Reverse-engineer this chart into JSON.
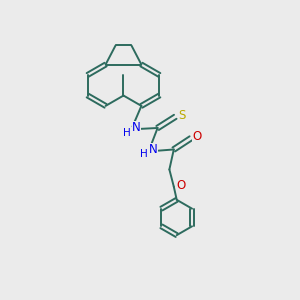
{
  "background_color": "#EBEBEB",
  "bond_color": "#2d6b5e",
  "N_color": "#0000EE",
  "O_color": "#CC0000",
  "S_color": "#BBAA00",
  "figsize": [
    3.0,
    3.0
  ],
  "dpi": 100,
  "xlim": [
    0,
    10
  ],
  "ylim": [
    0,
    10
  ]
}
